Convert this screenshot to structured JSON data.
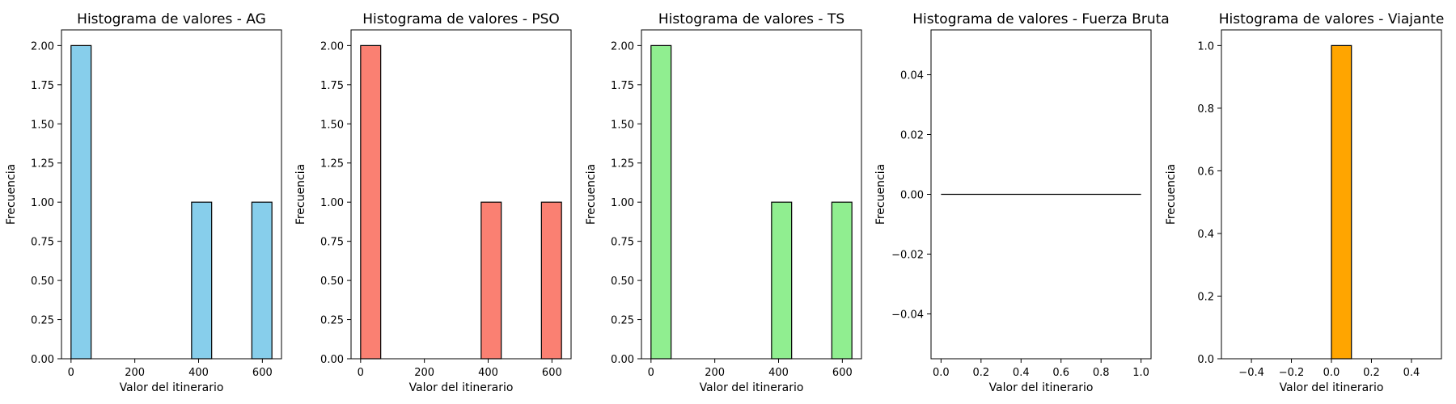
{
  "chart_data": [
    {
      "type": "bar",
      "title": "Histograma de valores - AG",
      "xlabel": "Valor del itinerario",
      "ylabel": "Frecuencia",
      "color": "#87ceeb",
      "xlim": [
        -30,
        660
      ],
      "ylim": [
        0,
        2.1
      ],
      "xticks": [
        0,
        200,
        400,
        600
      ],
      "yticks": [
        0,
        0.25,
        0.5,
        0.75,
        1.0,
        1.25,
        1.5,
        1.75,
        2.0
      ],
      "ytick_labels": [
        "0.00",
        "0.25",
        "0.50",
        "0.75",
        "1.00",
        "1.25",
        "1.50",
        "1.75",
        "2.00"
      ],
      "bins": [
        {
          "x0": 0,
          "x1": 63,
          "value": 2
        },
        {
          "x0": 378,
          "x1": 441,
          "value": 1
        },
        {
          "x0": 567,
          "x1": 630,
          "value": 1
        }
      ]
    },
    {
      "type": "bar",
      "title": "Histograma de valores - PSO",
      "xlabel": "Valor del itinerario",
      "ylabel": "Frecuencia",
      "color": "#fa8072",
      "xlim": [
        -30,
        660
      ],
      "ylim": [
        0,
        2.1
      ],
      "xticks": [
        0,
        200,
        400,
        600
      ],
      "yticks": [
        0,
        0.25,
        0.5,
        0.75,
        1.0,
        1.25,
        1.5,
        1.75,
        2.0
      ],
      "ytick_labels": [
        "0.00",
        "0.25",
        "0.50",
        "0.75",
        "1.00",
        "1.25",
        "1.50",
        "1.75",
        "2.00"
      ],
      "bins": [
        {
          "x0": 0,
          "x1": 63,
          "value": 2
        },
        {
          "x0": 378,
          "x1": 441,
          "value": 1
        },
        {
          "x0": 567,
          "x1": 630,
          "value": 1
        }
      ]
    },
    {
      "type": "bar",
      "title": "Histograma de valores - TS",
      "xlabel": "Valor del itinerario",
      "ylabel": "Frecuencia",
      "color": "#90ee90",
      "xlim": [
        -30,
        660
      ],
      "ylim": [
        0,
        2.1
      ],
      "xticks": [
        0,
        200,
        400,
        600
      ],
      "yticks": [
        0,
        0.25,
        0.5,
        0.75,
        1.0,
        1.25,
        1.5,
        1.75,
        2.0
      ],
      "ytick_labels": [
        "0.00",
        "0.25",
        "0.50",
        "0.75",
        "1.00",
        "1.25",
        "1.50",
        "1.75",
        "2.00"
      ],
      "bins": [
        {
          "x0": 0,
          "x1": 63,
          "value": 2
        },
        {
          "x0": 378,
          "x1": 441,
          "value": 1
        },
        {
          "x0": 567,
          "x1": 630,
          "value": 1
        }
      ]
    },
    {
      "type": "bar",
      "title": "Histograma de valores - Fuerza Bruta",
      "xlabel": "Valor del itinerario",
      "ylabel": "Frecuencia",
      "color": "#000000",
      "xlim": [
        -0.05,
        1.05
      ],
      "ylim": [
        -0.055,
        0.055
      ],
      "xticks": [
        0,
        0.2,
        0.4,
        0.6,
        0.8,
        1.0
      ],
      "xtick_labels": [
        "0.0",
        "0.2",
        "0.4",
        "0.6",
        "0.8",
        "1.0"
      ],
      "yticks": [
        -0.04,
        -0.02,
        0.0,
        0.02,
        0.04
      ],
      "ytick_labels": [
        "−0.04",
        "−0.02",
        "0.00",
        "0.02",
        "0.04"
      ],
      "bins": [
        {
          "x0": 0,
          "x1": 1.0,
          "value": 0
        }
      ]
    },
    {
      "type": "bar",
      "title": "Histograma de valores - Viajante",
      "xlabel": "Valor del itinerario",
      "ylabel": "Frecuencia",
      "color": "#ffa500",
      "xlim": [
        -0.55,
        0.55
      ],
      "ylim": [
        0,
        1.05
      ],
      "xticks": [
        -0.4,
        -0.2,
        0.0,
        0.2,
        0.4
      ],
      "xtick_labels": [
        "−0.4",
        "−0.2",
        "0.0",
        "0.2",
        "0.4"
      ],
      "yticks": [
        0,
        0.2,
        0.4,
        0.6,
        0.8,
        1.0
      ],
      "ytick_labels": [
        "0.0",
        "0.2",
        "0.4",
        "0.6",
        "0.8",
        "1.0"
      ],
      "bins": [
        {
          "x0": 0,
          "x1": 0.1,
          "value": 1
        }
      ]
    }
  ]
}
